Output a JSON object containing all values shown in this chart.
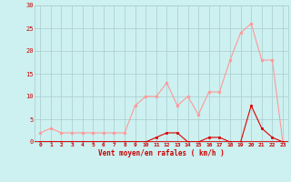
{
  "hours": [
    0,
    1,
    2,
    3,
    4,
    5,
    6,
    7,
    8,
    9,
    10,
    11,
    12,
    13,
    14,
    15,
    16,
    17,
    18,
    19,
    20,
    21,
    22,
    23
  ],
  "vent_moyen": [
    0,
    0,
    0,
    0,
    0,
    0,
    0,
    0,
    0,
    0,
    0,
    1,
    2,
    2,
    0,
    0,
    1,
    1,
    0,
    0,
    8,
    3,
    1,
    0
  ],
  "rafales": [
    2,
    3,
    2,
    2,
    2,
    2,
    2,
    2,
    2,
    8,
    10,
    10,
    13,
    8,
    10,
    6,
    11,
    11,
    18,
    24,
    26,
    18,
    18,
    0
  ],
  "line_color_moyen": "#dd0000",
  "line_color_rafales": "#ff9999",
  "bg_color": "#cdf0f0",
  "grid_color": "#aacccc",
  "xlabel": "Vent moyen/en rafales ( km/h )",
  "xlabel_color": "#cc0000",
  "tick_color": "#cc0000",
  "ylim": [
    0,
    30
  ],
  "xlim_min": -0.5,
  "xlim_max": 23.5,
  "yticks": [
    0,
    5,
    10,
    15,
    20,
    25,
    30
  ],
  "ytick_labels": [
    "0",
    "5",
    "10",
    "15",
    "20",
    "25",
    "30"
  ]
}
